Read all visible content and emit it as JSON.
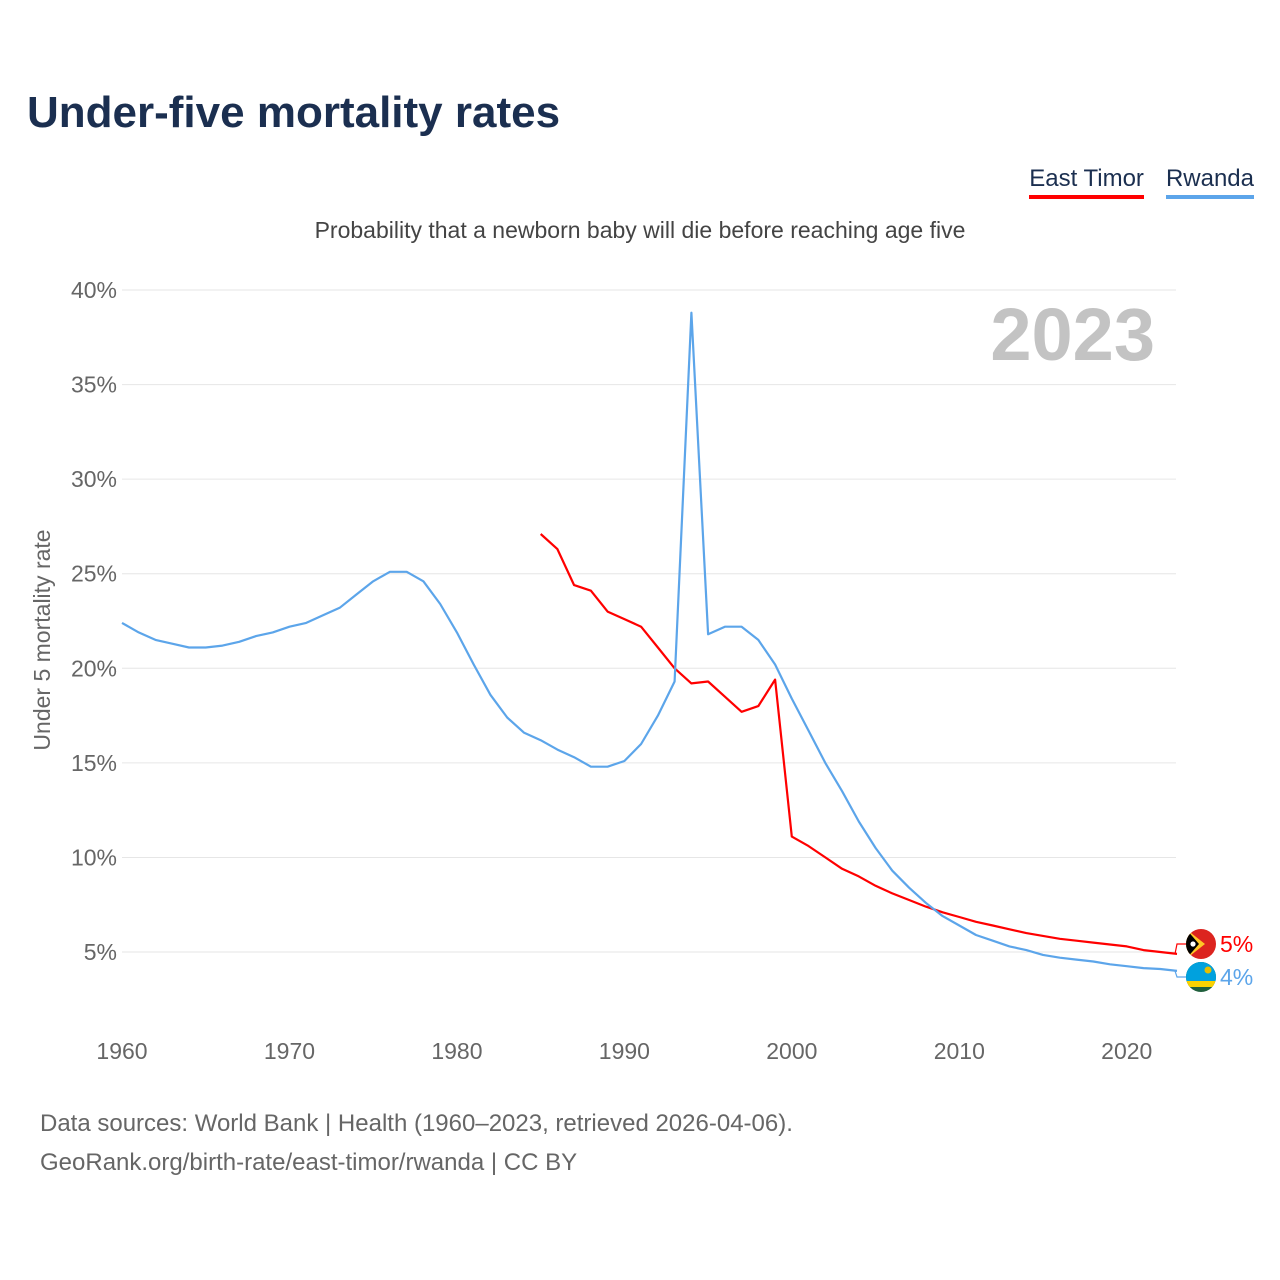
{
  "title": "Under-five mortality rates",
  "subtitle": "Probability that a newborn baby will die before reaching age five",
  "footer": {
    "line1": "Data sources: World Bank | Health (1960–2023, retrieved 2026-04-06).",
    "line2": "GeoRank.org/birth-rate/east-timor/rwanda | CC BY"
  },
  "chart_data": {
    "type": "line",
    "title": "Under-five mortality rates",
    "subtitle": "Probability that a newborn baby will die before reaching age five",
    "xlabel": "",
    "ylabel": "Under 5 mortality rate",
    "year_label": "2023",
    "xlim": [
      1960,
      2023
    ],
    "ylim": [
      0,
      40
    ],
    "x_ticks": [
      1960,
      1970,
      1980,
      1990,
      2000,
      2010,
      2020
    ],
    "y_ticks": [
      5,
      10,
      15,
      20,
      25,
      30,
      35,
      40
    ],
    "y_tick_labels": [
      "5%",
      "10%",
      "15%",
      "20%",
      "25%",
      "30%",
      "35%",
      "40%"
    ],
    "grid": true,
    "legend_position": "top-right",
    "series": [
      {
        "name": "East Timor",
        "color": "#ff0000",
        "flag": "east-timor-flag",
        "end_label": "5%",
        "x": [
          1985,
          1986,
          1987,
          1988,
          1989,
          1990,
          1991,
          1992,
          1993,
          1994,
          1995,
          1996,
          1997,
          1998,
          1999,
          2000,
          2001,
          2002,
          2003,
          2004,
          2005,
          2006,
          2007,
          2008,
          2009,
          2010,
          2011,
          2012,
          2013,
          2014,
          2015,
          2016,
          2017,
          2018,
          2019,
          2020,
          2021,
          2022,
          2023
        ],
        "values": [
          27.1,
          26.3,
          24.4,
          24.1,
          23.0,
          22.6,
          22.2,
          21.1,
          20.0,
          19.2,
          19.3,
          18.5,
          17.7,
          18.0,
          19.4,
          11.1,
          10.6,
          10.0,
          9.4,
          9.0,
          8.5,
          8.1,
          7.75,
          7.4,
          7.1,
          6.85,
          6.6,
          6.4,
          6.2,
          6.0,
          5.85,
          5.7,
          5.6,
          5.5,
          5.4,
          5.3,
          5.1,
          5.0,
          4.9
        ]
      },
      {
        "name": "Rwanda",
        "color": "#5ca5ea",
        "flag": "rwanda-flag",
        "end_label": "4%",
        "x": [
          1960,
          1961,
          1962,
          1963,
          1964,
          1965,
          1966,
          1967,
          1968,
          1969,
          1970,
          1971,
          1972,
          1973,
          1974,
          1975,
          1976,
          1977,
          1978,
          1979,
          1980,
          1981,
          1982,
          1983,
          1984,
          1985,
          1986,
          1987,
          1988,
          1989,
          1990,
          1991,
          1992,
          1993,
          1994,
          1995,
          1996,
          1997,
          1998,
          1999,
          2000,
          2001,
          2002,
          2003,
          2004,
          2005,
          2006,
          2007,
          2008,
          2009,
          2010,
          2011,
          2012,
          2013,
          2014,
          2015,
          2016,
          2017,
          2018,
          2019,
          2020,
          2021,
          2022,
          2023
        ],
        "values": [
          22.4,
          21.9,
          21.5,
          21.3,
          21.1,
          21.1,
          21.2,
          21.4,
          21.7,
          21.9,
          22.2,
          22.4,
          22.8,
          23.2,
          23.9,
          24.6,
          25.1,
          25.1,
          24.6,
          23.4,
          21.9,
          20.2,
          18.6,
          17.4,
          16.6,
          16.2,
          15.7,
          15.3,
          14.8,
          14.8,
          15.1,
          16.0,
          17.5,
          19.3,
          38.8,
          21.8,
          22.2,
          22.2,
          21.5,
          20.2,
          18.4,
          16.7,
          15.0,
          13.5,
          11.9,
          10.5,
          9.3,
          8.4,
          7.6,
          6.9,
          6.4,
          5.9,
          5.6,
          5.3,
          5.1,
          4.85,
          4.7,
          4.6,
          4.5,
          4.35,
          4.25,
          4.15,
          4.1,
          4.0
        ]
      }
    ]
  }
}
